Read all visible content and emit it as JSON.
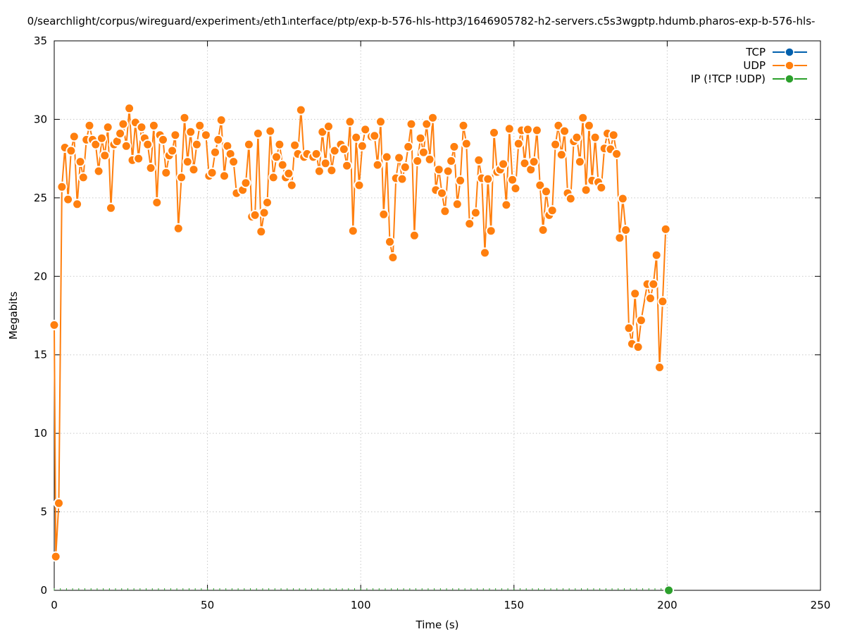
{
  "chart_data": {
    "type": "line",
    "title": "0/searchlight/corpus/wireguard/experiment₃/eth1ᵢnterface/ptp/exp-b-576-hls-http3/1646905782-h2-servers.c5s3wgptp.hdumb.pharos-exp-b-576-hls-",
    "xlabel": "Time (s)",
    "ylabel": "Megabits",
    "xlim": [
      0,
      250
    ],
    "ylim": [
      0,
      35
    ],
    "x_ticks": [
      "0",
      "50",
      "100",
      "150",
      "200",
      "250"
    ],
    "y_ticks": [
      "0",
      "5",
      "10",
      "15",
      "20",
      "25",
      "30",
      "35"
    ],
    "grid": true,
    "legend_position": "top-right",
    "series": [
      {
        "name": "TCP",
        "color": "#0060ad",
        "points": []
      },
      {
        "name": "UDP",
        "color": "#ff7f0e",
        "points": [
          [
            0,
            16.9
          ],
          [
            0.5,
            2.15
          ],
          [
            1.5,
            5.55
          ],
          [
            2.5,
            25.7
          ],
          [
            3.5,
            28.2
          ],
          [
            4.5,
            24.9
          ],
          [
            5.5,
            28.0
          ],
          [
            6.5,
            28.9
          ],
          [
            7.5,
            24.6
          ],
          [
            8.5,
            27.3
          ],
          [
            9.5,
            26.3
          ],
          [
            10.5,
            28.7
          ],
          [
            11.5,
            29.6
          ],
          [
            12.5,
            28.7
          ],
          [
            13.5,
            28.4
          ],
          [
            14.5,
            26.7
          ],
          [
            15.5,
            28.8
          ],
          [
            16.5,
            27.7
          ],
          [
            17.5,
            29.5
          ],
          [
            18.5,
            24.35
          ],
          [
            19.5,
            28.4
          ],
          [
            20.5,
            28.6
          ],
          [
            21.5,
            29.1
          ],
          [
            22.5,
            29.7
          ],
          [
            23.5,
            28.3
          ],
          [
            24.5,
            30.7
          ],
          [
            25.5,
            27.4
          ],
          [
            26.5,
            29.8
          ],
          [
            27.5,
            27.5
          ],
          [
            28.5,
            29.5
          ],
          [
            29.5,
            28.8
          ],
          [
            30.5,
            28.4
          ],
          [
            31.5,
            26.9
          ],
          [
            32.5,
            29.6
          ],
          [
            33.5,
            24.7
          ],
          [
            34.5,
            29.0
          ],
          [
            35.5,
            28.7
          ],
          [
            36.5,
            26.6
          ],
          [
            37.5,
            27.7
          ],
          [
            38.5,
            28.0
          ],
          [
            39.5,
            29.0
          ],
          [
            40.5,
            23.05
          ],
          [
            41.5,
            26.3
          ],
          [
            42.5,
            30.1
          ],
          [
            43.5,
            27.3
          ],
          [
            44.5,
            29.2
          ],
          [
            45.5,
            26.8
          ],
          [
            46.5,
            28.4
          ],
          [
            47.5,
            29.6
          ],
          [
            49.5,
            29.0
          ],
          [
            50.5,
            26.4
          ],
          [
            51.5,
            26.6
          ],
          [
            52.5,
            27.9
          ],
          [
            53.5,
            28.7
          ],
          [
            54.5,
            29.95
          ],
          [
            55.5,
            26.4
          ],
          [
            56.5,
            28.3
          ],
          [
            57.5,
            27.8
          ],
          [
            58.5,
            27.3
          ],
          [
            59.5,
            25.3
          ],
          [
            61.5,
            25.5
          ],
          [
            62.5,
            25.95
          ],
          [
            63.5,
            28.4
          ],
          [
            64.5,
            23.8
          ],
          [
            65.5,
            23.9
          ],
          [
            66.5,
            29.1
          ],
          [
            67.5,
            22.85
          ],
          [
            68.5,
            24.05
          ],
          [
            69.5,
            24.7
          ],
          [
            70.5,
            29.25
          ],
          [
            71.5,
            26.3
          ],
          [
            72.5,
            27.6
          ],
          [
            73.5,
            28.4
          ],
          [
            74.5,
            27.1
          ],
          [
            75.5,
            26.3
          ],
          [
            76.5,
            26.55
          ],
          [
            77.5,
            25.8
          ],
          [
            78.5,
            28.35
          ],
          [
            79.5,
            27.8
          ],
          [
            80.5,
            30.6
          ],
          [
            81.5,
            27.6
          ],
          [
            82.5,
            27.8
          ],
          [
            84.5,
            27.6
          ],
          [
            85.5,
            27.8
          ],
          [
            86.5,
            26.7
          ],
          [
            87.5,
            29.2
          ],
          [
            88.5,
            27.2
          ],
          [
            89.5,
            29.55
          ],
          [
            90.5,
            26.75
          ],
          [
            91.5,
            28.0
          ],
          [
            93.5,
            28.4
          ],
          [
            94.5,
            28.1
          ],
          [
            95.5,
            27.05
          ],
          [
            96.5,
            29.85
          ],
          [
            97.5,
            22.9
          ],
          [
            98.5,
            28.85
          ],
          [
            99.5,
            25.8
          ],
          [
            100.5,
            28.3
          ],
          [
            101.5,
            29.35
          ],
          [
            103.5,
            28.9
          ],
          [
            104.5,
            28.95
          ],
          [
            105.5,
            27.1
          ],
          [
            106.5,
            29.85
          ],
          [
            107.5,
            23.95
          ],
          [
            108.5,
            27.6
          ],
          [
            109.5,
            22.2
          ],
          [
            110.5,
            21.2
          ],
          [
            111.5,
            26.25
          ],
          [
            112.5,
            27.55
          ],
          [
            113.5,
            26.2
          ],
          [
            114.5,
            26.95
          ],
          [
            115.5,
            28.25
          ],
          [
            116.5,
            29.7
          ],
          [
            117.5,
            22.6
          ],
          [
            118.5,
            27.35
          ],
          [
            119.5,
            28.8
          ],
          [
            120.5,
            27.9
          ],
          [
            121.5,
            29.7
          ],
          [
            122.5,
            27.45
          ],
          [
            123.5,
            30.1
          ],
          [
            124.5,
            25.5
          ],
          [
            125.5,
            26.8
          ],
          [
            126.5,
            25.3
          ],
          [
            127.5,
            24.15
          ],
          [
            128.5,
            26.7
          ],
          [
            129.5,
            27.35
          ],
          [
            130.5,
            28.25
          ],
          [
            131.5,
            24.6
          ],
          [
            132.5,
            26.1
          ],
          [
            133.5,
            29.6
          ],
          [
            134.5,
            28.45
          ],
          [
            135.5,
            23.35
          ],
          [
            137.5,
            24.05
          ],
          [
            138.5,
            27.4
          ],
          [
            139.5,
            26.25
          ],
          [
            140.5,
            21.5
          ],
          [
            141.5,
            26.2
          ],
          [
            142.5,
            22.9
          ],
          [
            143.5,
            29.15
          ],
          [
            144.5,
            26.65
          ],
          [
            145.5,
            26.8
          ],
          [
            146.5,
            27.15
          ],
          [
            147.5,
            24.55
          ],
          [
            148.5,
            29.4
          ],
          [
            149.5,
            26.15
          ],
          [
            150.5,
            25.6
          ],
          [
            151.5,
            28.45
          ],
          [
            152.5,
            29.3
          ],
          [
            153.5,
            27.2
          ],
          [
            154.5,
            29.35
          ],
          [
            155.5,
            26.8
          ],
          [
            156.5,
            27.3
          ],
          [
            157.5,
            29.3
          ],
          [
            158.5,
            25.8
          ],
          [
            159.5,
            22.95
          ],
          [
            160.5,
            25.4
          ],
          [
            161.5,
            23.9
          ],
          [
            162.5,
            24.2
          ],
          [
            163.5,
            28.4
          ],
          [
            164.5,
            29.6
          ],
          [
            165.5,
            27.75
          ],
          [
            166.5,
            29.25
          ],
          [
            167.5,
            25.3
          ],
          [
            168.5,
            24.95
          ],
          [
            169.5,
            28.6
          ],
          [
            170.5,
            28.85
          ],
          [
            171.5,
            27.3
          ],
          [
            172.5,
            30.1
          ],
          [
            173.5,
            25.5
          ],
          [
            174.5,
            29.6
          ],
          [
            175.5,
            26.1
          ],
          [
            176.5,
            28.85
          ],
          [
            177.5,
            26.0
          ],
          [
            178.5,
            25.65
          ],
          [
            179.5,
            28.15
          ],
          [
            180.5,
            29.1
          ],
          [
            181.5,
            28.1
          ],
          [
            182.5,
            29.0
          ],
          [
            183.5,
            27.8
          ],
          [
            184.5,
            22.45
          ],
          [
            185.5,
            24.95
          ],
          [
            186.5,
            22.95
          ],
          [
            187.5,
            16.7
          ],
          [
            188.5,
            15.7
          ],
          [
            189.5,
            18.9
          ],
          [
            190.5,
            15.5
          ],
          [
            191.5,
            17.2
          ],
          [
            193.5,
            19.5
          ],
          [
            194.5,
            18.6
          ],
          [
            195.5,
            19.5
          ],
          [
            196.5,
            21.35
          ],
          [
            197.5,
            14.2
          ],
          [
            198.5,
            18.4
          ],
          [
            199.5,
            23.0
          ]
        ]
      },
      {
        "name": "IP (!TCP  !UDP)",
        "color": "#2ca02c",
        "points": [
          [
            200.5,
            0
          ]
        ]
      }
    ]
  }
}
